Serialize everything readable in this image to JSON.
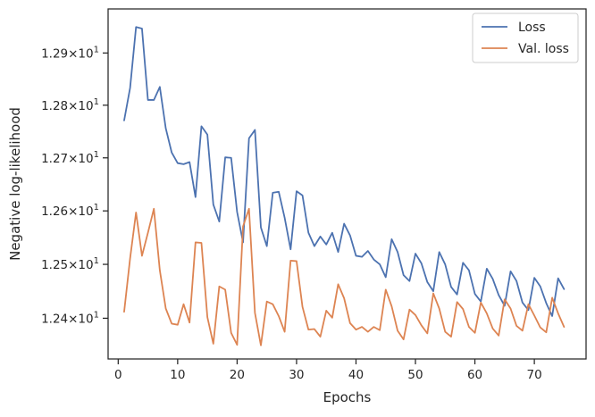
{
  "chart_data": {
    "type": "line",
    "xlabel": "Epochs",
    "ylabel": "Negative log-likelihood",
    "y_scale": "log",
    "xlim": [
      -1.7,
      78.7
    ],
    "ylim": [
      12.325,
      12.985
    ],
    "grid": false,
    "legend_placement": "top-right",
    "x_ticks": [
      0,
      10,
      20,
      30,
      40,
      50,
      60,
      70
    ],
    "x_tick_labels": [
      "0",
      "10",
      "20",
      "30",
      "40",
      "50",
      "60",
      "70"
    ],
    "y_ticks": [
      12.4,
      12.5,
      12.6,
      12.7,
      12.8,
      12.9
    ],
    "y_tick_labels": [
      {
        "mantissa": "1.24",
        "base": "10",
        "exp": "1"
      },
      {
        "mantissa": "1.25",
        "base": "10",
        "exp": "1"
      },
      {
        "mantissa": "1.26",
        "base": "10",
        "exp": "1"
      },
      {
        "mantissa": "1.27",
        "base": "10",
        "exp": "1"
      },
      {
        "mantissa": "1.28",
        "base": "10",
        "exp": "1"
      },
      {
        "mantissa": "1.29",
        "base": "10",
        "exp": "1"
      }
    ],
    "x": [
      1,
      2,
      3,
      4,
      5,
      6,
      7,
      8,
      9,
      10,
      11,
      12,
      13,
      14,
      15,
      16,
      17,
      18,
      19,
      20,
      21,
      22,
      23,
      24,
      25,
      26,
      27,
      28,
      29,
      30,
      31,
      32,
      33,
      34,
      35,
      36,
      37,
      38,
      39,
      40,
      41,
      42,
      43,
      44,
      45,
      46,
      47,
      48,
      49,
      50,
      51,
      52,
      53,
      54,
      55,
      56,
      57,
      58,
      59,
      60,
      61,
      62,
      63,
      64,
      65,
      66,
      67,
      68,
      69,
      70,
      71,
      72,
      73,
      74,
      75
    ],
    "series": [
      {
        "name": "Loss",
        "color": "#4c72b0",
        "values": [
          12.771,
          12.833,
          12.95,
          12.947,
          12.81,
          12.81,
          12.835,
          12.756,
          12.71,
          12.69,
          12.688,
          12.692,
          12.626,
          12.76,
          12.744,
          12.612,
          12.58,
          12.701,
          12.7,
          12.598,
          12.541,
          12.737,
          12.753,
          12.569,
          12.534,
          12.634,
          12.636,
          12.587,
          12.528,
          12.637,
          12.629,
          12.559,
          12.534,
          12.552,
          12.537,
          12.559,
          12.523,
          12.576,
          12.554,
          12.516,
          12.514,
          12.525,
          12.509,
          12.5,
          12.476,
          12.547,
          12.523,
          12.48,
          12.469,
          12.52,
          12.502,
          12.467,
          12.45,
          12.523,
          12.5,
          12.458,
          12.444,
          12.503,
          12.489,
          12.445,
          12.431,
          12.492,
          12.473,
          12.443,
          12.423,
          12.487,
          12.469,
          12.429,
          12.415,
          12.475,
          12.459,
          12.428,
          12.404,
          12.474,
          12.454
        ]
      },
      {
        "name": "Val. loss",
        "color": "#dd8452",
        "values": [
          12.412,
          12.511,
          12.597,
          12.516,
          12.559,
          12.604,
          12.489,
          12.418,
          12.39,
          12.388,
          12.426,
          12.392,
          12.541,
          12.54,
          12.402,
          12.353,
          12.459,
          12.453,
          12.373,
          12.351,
          12.571,
          12.604,
          12.41,
          12.35,
          12.431,
          12.426,
          12.404,
          12.375,
          12.507,
          12.506,
          12.421,
          12.379,
          12.38,
          12.366,
          12.414,
          12.401,
          12.463,
          12.437,
          12.391,
          12.379,
          12.384,
          12.375,
          12.384,
          12.378,
          12.453,
          12.422,
          12.377,
          12.361,
          12.416,
          12.406,
          12.387,
          12.372,
          12.446,
          12.418,
          12.375,
          12.366,
          12.43,
          12.417,
          12.384,
          12.373,
          12.429,
          12.409,
          12.381,
          12.368,
          12.435,
          12.418,
          12.386,
          12.377,
          12.426,
          12.405,
          12.383,
          12.374,
          12.438,
          12.409,
          12.384
        ]
      }
    ]
  }
}
